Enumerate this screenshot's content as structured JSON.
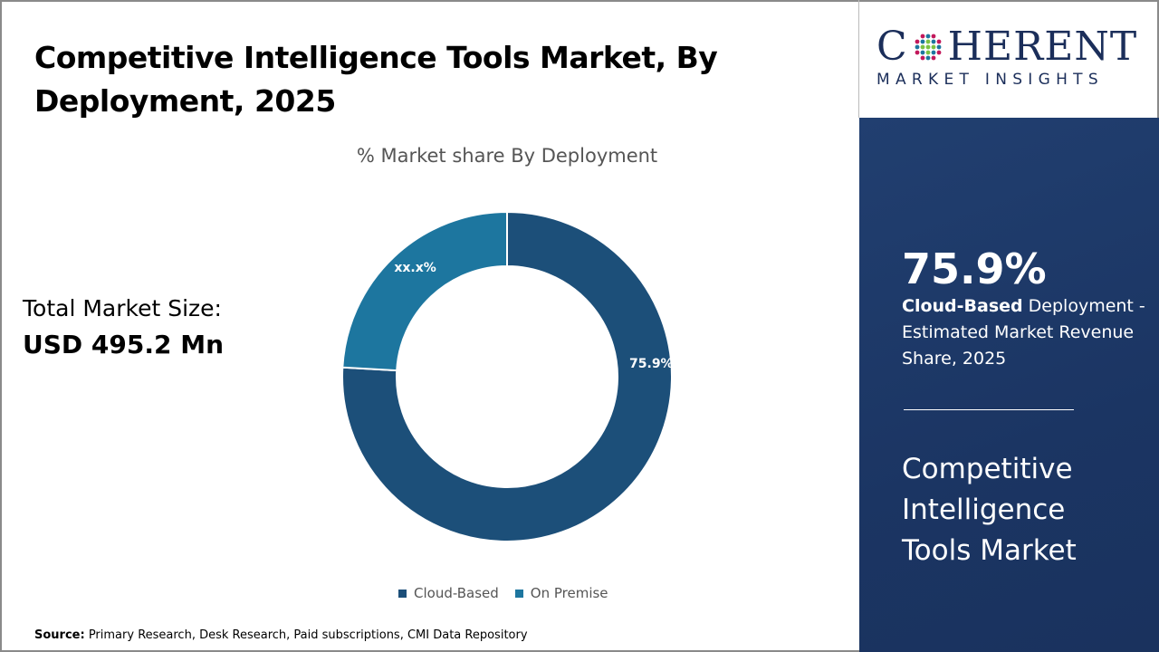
{
  "title": "Competitive Intelligence Tools Market, By Deployment, 2025",
  "total_market": {
    "label": "Total Market Size:",
    "value": "USD 495.2 Mn"
  },
  "source": {
    "label": "Source:",
    "text": " Primary Research, Desk Research, Paid subscriptions, CMI Data Repository"
  },
  "logo": {
    "brand": "COHERENT",
    "tagline": "MARKET INSIGHTS"
  },
  "highlight": {
    "value": "75.9%",
    "segment": "Cloud-Based",
    "description": " Deployment - Estimated Market Revenue Share, 2025",
    "market_name": "Competitive Intelligence Tools Market"
  },
  "chart_data": {
    "type": "pie",
    "donut": true,
    "title": "% Market share By Deployment",
    "categories": [
      "Cloud-Based",
      "On Premise"
    ],
    "values": [
      75.9,
      24.1
    ],
    "data_labels": [
      "75.9%",
      "xx.x%"
    ],
    "colors": [
      "#1c4f79",
      "#1d769f"
    ],
    "legend": "bottom"
  }
}
